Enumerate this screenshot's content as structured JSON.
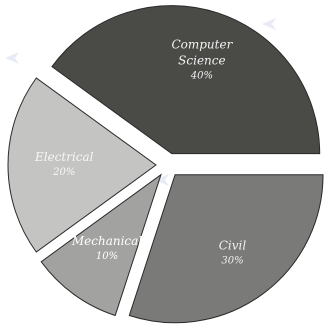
{
  "chart_data": {
    "type": "pie",
    "exploded": true,
    "slices": [
      {
        "label": "Computer Science",
        "label_lines": [
          "Computer",
          "Science"
        ],
        "value": 40,
        "value_label": "40%",
        "color": "#4a4a47",
        "text_color": "#f2f2f2"
      },
      {
        "label": "Civil",
        "label_lines": [
          "Civil"
        ],
        "value": 30,
        "value_label": "30%",
        "color": "#7a7a78",
        "text_color": "#f0f0f0"
      },
      {
        "label": "Mechanical",
        "label_lines": [
          "Mechanical"
        ],
        "value": 10,
        "value_label": "10%",
        "color": "#a2a2a0",
        "text_color": "#ffffff"
      },
      {
        "label": "Electrical",
        "label_lines": [
          "Electrical"
        ],
        "value": 20,
        "value_label": "20%",
        "color": "#c4c4c2",
        "text_color": "#f7f7f7"
      }
    ]
  }
}
